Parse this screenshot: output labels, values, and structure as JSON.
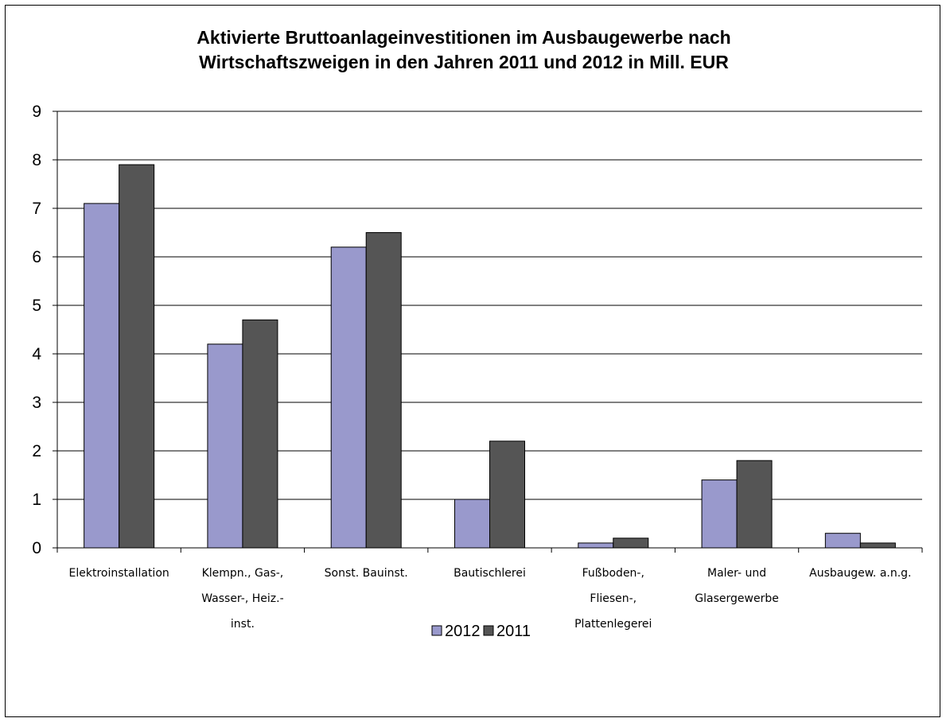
{
  "chart_data": {
    "type": "bar",
    "title_lines": [
      "Aktivierte Bruttoanlageinvestitionen im Ausbaugewerbe nach",
      "Wirtschaftszweigen in den Jahren 2011 und 2012 in Mill. EUR"
    ],
    "categories": [
      [
        "Elektroinstallation"
      ],
      [
        "Klempn., Gas-,",
        "Wasser-, Heiz.-",
        "inst."
      ],
      [
        "Sonst. Bauinst."
      ],
      [
        "Bautischlerei"
      ],
      [
        "Fußboden-,",
        "Fliesen-,",
        "Plattenlegerei"
      ],
      [
        "Maler- und",
        "Glasergewerbe"
      ],
      [
        "Ausbaugew. a.n.g."
      ]
    ],
    "series": [
      {
        "name": "2012",
        "color": "#9999CC",
        "values": [
          7.1,
          4.2,
          6.2,
          1.0,
          0.1,
          1.4,
          0.3
        ]
      },
      {
        "name": "2011",
        "color": "#555555",
        "values": [
          7.9,
          4.7,
          6.5,
          2.2,
          0.2,
          1.8,
          0.1
        ]
      }
    ],
    "ylim": [
      0,
      9
    ],
    "yticks": [
      0,
      1,
      2,
      3,
      4,
      5,
      6,
      7,
      8,
      9
    ],
    "grid": true,
    "legend_position": "bottom"
  }
}
